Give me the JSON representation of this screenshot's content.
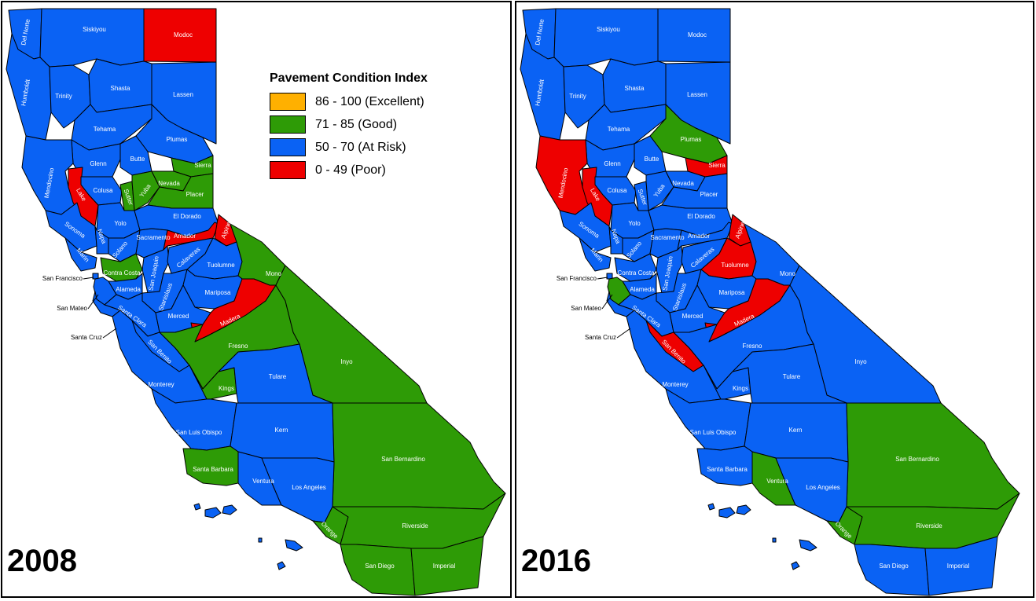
{
  "colors": {
    "excellent": "#ffb000",
    "good": "#2e9b06",
    "at_risk": "#0a62f4",
    "poor": "#ee0000"
  },
  "legend": {
    "title": "Pavement Condition Index",
    "items": [
      {
        "label": "86 - 100 (Excellent)",
        "color": "#ffb000"
      },
      {
        "label": "71 - 85 (Good)",
        "color": "#2e9b06"
      },
      {
        "label": "50 - 70 (At Risk)",
        "color": "#0a62f4"
      },
      {
        "label": "0 - 49 (Poor)",
        "color": "#ee0000"
      }
    ]
  },
  "maps": [
    {
      "year": "2008",
      "counties": {
        "Del Norte": "at_risk",
        "Siskiyou": "at_risk",
        "Modoc": "poor",
        "Humboldt": "at_risk",
        "Trinity": "at_risk",
        "Shasta": "at_risk",
        "Lassen": "at_risk",
        "Tehama": "at_risk",
        "Plumas": "at_risk",
        "Glenn": "at_risk",
        "Butte": "at_risk",
        "Mendocino": "at_risk",
        "Lake": "poor",
        "Colusa": "at_risk",
        "Sutter": "good",
        "Yuba": "good",
        "Nevada": "good",
        "Sierra": "good",
        "Placer": "good",
        "Yolo": "at_risk",
        "El Dorado": "at_risk",
        "Sonoma": "at_risk",
        "Napa": "at_risk",
        "Solano": "at_risk",
        "Sacramento": "at_risk",
        "Amador": "poor",
        "Alpine": "poor",
        "Marin": "at_risk",
        "Contra Costa": "good",
        "San Joaquin": "at_risk",
        "Calaveras": "at_risk",
        "Tuolumne": "at_risk",
        "Mono": "good",
        "Alameda": "at_risk",
        "Stanislaus": "at_risk",
        "Mariposa": "at_risk",
        "San Francisco": "at_risk",
        "San Mateo": "at_risk",
        "Santa Clara": "at_risk",
        "Merced": "at_risk",
        "Madera": "poor",
        "Santa Cruz": "at_risk",
        "San Benito": "at_risk",
        "Fresno": "good",
        "Inyo": "good",
        "Monterey": "at_risk",
        "Kings": "good",
        "Tulare": "at_risk",
        "San Luis Obispo": "at_risk",
        "Kern": "at_risk",
        "San Bernardino": "good",
        "Santa Barbara": "good",
        "Ventura": "at_risk",
        "Los Angeles": "at_risk",
        "Orange": "good",
        "Riverside": "good",
        "San Diego": "good",
        "Imperial": "good",
        "Islands": "at_risk"
      }
    },
    {
      "year": "2016",
      "counties": {
        "Del Norte": "at_risk",
        "Siskiyou": "at_risk",
        "Modoc": "at_risk",
        "Humboldt": "at_risk",
        "Trinity": "at_risk",
        "Shasta": "at_risk",
        "Lassen": "at_risk",
        "Tehama": "at_risk",
        "Plumas": "good",
        "Glenn": "at_risk",
        "Butte": "at_risk",
        "Mendocino": "poor",
        "Lake": "poor",
        "Colusa": "at_risk",
        "Sutter": "at_risk",
        "Yuba": "at_risk",
        "Nevada": "at_risk",
        "Sierra": "poor",
        "Placer": "at_risk",
        "Yolo": "at_risk",
        "El Dorado": "at_risk",
        "Sonoma": "at_risk",
        "Napa": "at_risk",
        "Solano": "at_risk",
        "Sacramento": "at_risk",
        "Amador": "at_risk",
        "Alpine": "poor",
        "Marin": "at_risk",
        "Contra Costa": "at_risk",
        "San Joaquin": "at_risk",
        "Calaveras": "at_risk",
        "Tuolumne": "poor",
        "Mono": "at_risk",
        "Alameda": "at_risk",
        "Stanislaus": "at_risk",
        "Mariposa": "at_risk",
        "San Francisco": "at_risk",
        "San Mateo": "good",
        "Santa Clara": "at_risk",
        "Merced": "at_risk",
        "Madera": "poor",
        "Santa Cruz": "at_risk",
        "San Benito": "poor",
        "Fresno": "at_risk",
        "Inyo": "at_risk",
        "Monterey": "at_risk",
        "Kings": "at_risk",
        "Tulare": "at_risk",
        "San Luis Obispo": "at_risk",
        "Kern": "at_risk",
        "San Bernardino": "good",
        "Santa Barbara": "at_risk",
        "Ventura": "good",
        "Los Angeles": "at_risk",
        "Orange": "good",
        "Riverside": "good",
        "San Diego": "at_risk",
        "Imperial": "at_risk",
        "Islands": "at_risk"
      }
    }
  ]
}
